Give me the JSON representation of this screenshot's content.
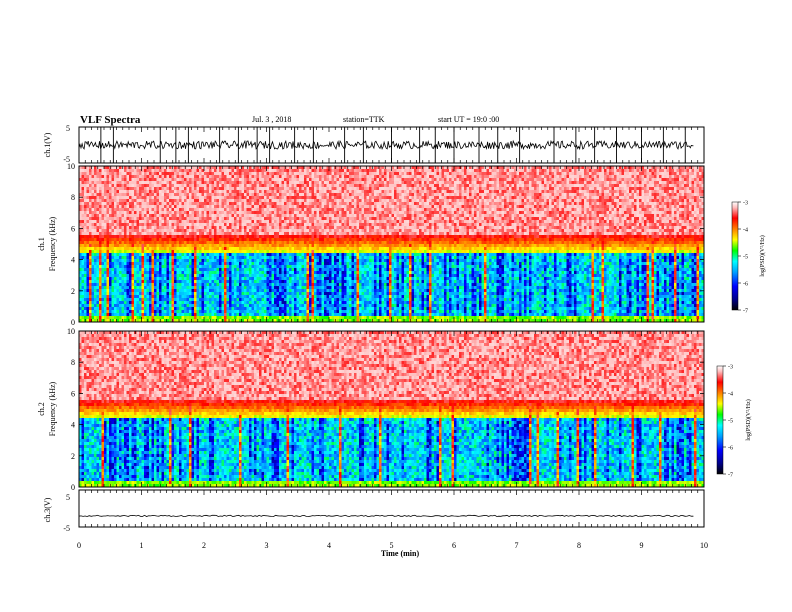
{
  "header": {
    "title": "VLF Spectra",
    "date": "Jul. 3 , 2018",
    "station": "station=TTK",
    "start": "start UT = 19:0 :00"
  },
  "panels": {
    "ch1_wave_label": "ch.1(V)",
    "ch1_spec_label": "ch.1",
    "ch2_wave_label": "ch.3(V)",
    "ch2_spec_label": "ch.2",
    "freq_label": "Frequency (kHz)",
    "xlabel": "Time (min)",
    "colorbar_label": "log(PSD)(V²/Hz)"
  },
  "chart_data": [
    {
      "type": "line",
      "panel": "ch.1 waveform",
      "ylabel": "ch.1(V)",
      "xlim": [
        0,
        10
      ],
      "ylim": [
        -5,
        5
      ],
      "yticks": [
        "5",
        "-5"
      ],
      "xticks": [
        "0",
        "1",
        "2",
        "3",
        "4",
        "5",
        "6",
        "7",
        "8",
        "9",
        "10"
      ],
      "baseline": 0,
      "data_end": 9.83,
      "spikes_x": [
        0.35,
        0.55,
        1.3,
        1.55,
        1.75,
        2.25,
        2.55,
        2.85,
        3.05,
        3.45,
        3.75,
        4.25,
        4.55,
        5.0,
        5.45,
        5.7,
        6.0,
        6.4,
        6.7,
        7.05,
        7.6,
        7.95,
        8.25,
        8.6,
        9.0,
        9.35,
        9.7
      ]
    },
    {
      "type": "heatmap",
      "panel": "ch.1 spectrogram",
      "ylabel": "Frequency (kHz)",
      "xlim": [
        0,
        10
      ],
      "ylim": [
        0,
        10
      ],
      "yticks": [
        "0",
        "2",
        "4",
        "6",
        "8",
        "10"
      ],
      "colorbar": {
        "label": "log(PSD)(V²/Hz)",
        "range": [
          -7,
          -3
        ],
        "ticks": [
          "-3",
          "-4",
          "-5",
          "-6",
          "-7"
        ]
      },
      "transition_khz": 5
    },
    {
      "type": "heatmap",
      "panel": "ch.2 spectrogram",
      "ylabel": "Frequency (kHz)",
      "xlim": [
        0,
        10
      ],
      "ylim": [
        0,
        10
      ],
      "yticks": [
        "0",
        "2",
        "4",
        "6",
        "8",
        "10"
      ],
      "colorbar": {
        "label": "log(PSD)(V²/Hz)",
        "range": [
          -7,
          -3
        ],
        "ticks": [
          "-3",
          "-4",
          "-5",
          "-6",
          "-7"
        ]
      },
      "transition_khz": 5
    },
    {
      "type": "line",
      "panel": "ch.3 waveform",
      "ylabel": "ch.3(V)",
      "xlabel": "Time (min)",
      "xlim": [
        0,
        10
      ],
      "ylim": [
        -5,
        5
      ],
      "yticks": [
        "5",
        "-5"
      ],
      "xticks": [
        "0",
        "1",
        "2",
        "3",
        "4",
        "5",
        "6",
        "7",
        "8",
        "9",
        "10"
      ],
      "baseline": -2,
      "data_end": 9.83
    }
  ],
  "colors": {
    "background": "#ffffff",
    "axis": "#000000",
    "colormap": [
      "#000000",
      "#00008b",
      "#0000ff",
      "#00a0ff",
      "#00ffff",
      "#00ff00",
      "#ffff00",
      "#ff8000",
      "#ff0000",
      "#ffc0c0",
      "#ffffff"
    ]
  }
}
